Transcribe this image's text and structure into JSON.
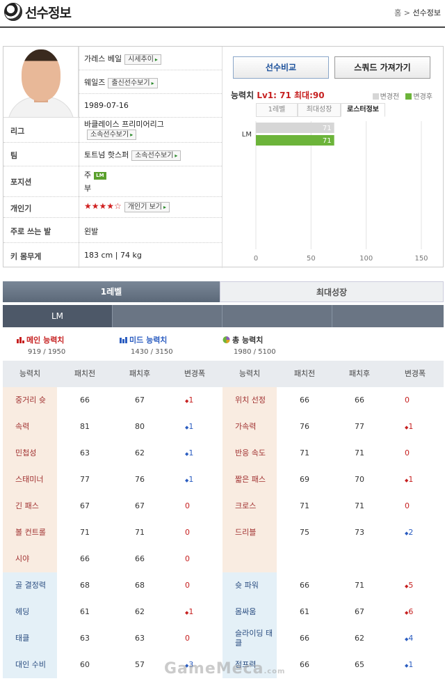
{
  "header": {
    "title": "선수정보",
    "breadcrumb_home": "홈",
    "breadcrumb_sep": ">",
    "breadcrumb_current": "선수정보"
  },
  "profile": {
    "name": "가레스 베일",
    "name_button": "시세추이",
    "nation": "웨일즈",
    "nation_button": "출신선수보기",
    "birth": "1989-07-16",
    "league_label": "리그",
    "league": "바클레이스 프리미어리그",
    "league_button": "소속선수보기",
    "team_label": "팀",
    "team": "토트넘 핫스퍼",
    "team_button": "소속선수보기",
    "position_label": "포지션",
    "position_main_prefix": "주",
    "position_main": "LM",
    "position_sub_prefix": "부",
    "popularity_label": "개인기",
    "popularity_stars": "★★★★☆",
    "popularity_button": "개인기 보기",
    "foot_label": "주로 쓰는 발",
    "foot": "왼발",
    "size_label": "키 몸무게",
    "size": "183 cm | 74 kg"
  },
  "panel": {
    "compare_button": "선수비교",
    "squad_button": "스쿼드 가져가기",
    "stat_title_prefix": "능력치",
    "stat_title_value": "Lv1: 71 최대:90",
    "legend_before": "변경전",
    "legend_after": "변경후",
    "tabs": [
      "1레벨",
      "최대성장",
      "로스터정보"
    ],
    "colors": {
      "before": "#d6d6d6",
      "after": "#6cb43a"
    }
  },
  "chart_data": {
    "type": "bar",
    "orientation": "horizontal",
    "categories": [
      "LM"
    ],
    "series": [
      {
        "name": "변경전",
        "values": [
          71
        ]
      },
      {
        "name": "변경후",
        "values": [
          71
        ]
      }
    ],
    "xlim": [
      0,
      150
    ],
    "xticks": [
      0,
      50,
      100,
      150
    ],
    "grid": true,
    "legend": "top-right"
  },
  "main_tabs": [
    "1레벨",
    "최대성장"
  ],
  "position_tabs": [
    "LM",
    "",
    "",
    ""
  ],
  "summary": {
    "main_label": "메인 능력치",
    "main_value": "919 / 1950",
    "mid_label": "미드 능력치",
    "mid_value": "1430 / 3150",
    "total_label": "총 능력치",
    "total_value": "1980 / 5100"
  },
  "table": {
    "headers": [
      "능력치",
      "패치전",
      "패치후",
      "변경폭",
      "능력치",
      "패치전",
      "패치후",
      "변경폭"
    ],
    "rows": [
      {
        "l": {
          "name": "중거리 슛",
          "before": "66",
          "after": "67",
          "delta": "1",
          "dir": "up",
          "cat": "main"
        },
        "r": {
          "name": "위치 선정",
          "before": "66",
          "after": "66",
          "delta": "0",
          "dir": "zero",
          "cat": "main"
        }
      },
      {
        "l": {
          "name": "속력",
          "before": "81",
          "after": "80",
          "delta": "1",
          "dir": "down",
          "cat": "main"
        },
        "r": {
          "name": "가속력",
          "before": "76",
          "after": "77",
          "delta": "1",
          "dir": "up",
          "cat": "main"
        }
      },
      {
        "l": {
          "name": "민첩성",
          "before": "63",
          "after": "62",
          "delta": "1",
          "dir": "down",
          "cat": "main"
        },
        "r": {
          "name": "반응 속도",
          "before": "71",
          "after": "71",
          "delta": "0",
          "dir": "zero",
          "cat": "main"
        }
      },
      {
        "l": {
          "name": "스태미너",
          "before": "77",
          "after": "76",
          "delta": "1",
          "dir": "down",
          "cat": "main"
        },
        "r": {
          "name": "짧은 패스",
          "before": "69",
          "after": "70",
          "delta": "1",
          "dir": "up",
          "cat": "main"
        }
      },
      {
        "l": {
          "name": "긴 패스",
          "before": "67",
          "after": "67",
          "delta": "0",
          "dir": "zero",
          "cat": "main"
        },
        "r": {
          "name": "크로스",
          "before": "71",
          "after": "71",
          "delta": "0",
          "dir": "zero",
          "cat": "main"
        }
      },
      {
        "l": {
          "name": "볼 컨트롤",
          "before": "71",
          "after": "71",
          "delta": "0",
          "dir": "zero",
          "cat": "main"
        },
        "r": {
          "name": "드리블",
          "before": "75",
          "after": "73",
          "delta": "2",
          "dir": "down",
          "cat": "main"
        }
      },
      {
        "l": {
          "name": "시야",
          "before": "66",
          "after": "66",
          "delta": "0",
          "dir": "zero",
          "cat": "main"
        },
        "r": {
          "name": "",
          "before": "",
          "after": "",
          "delta": "",
          "dir": "",
          "cat": "main"
        }
      },
      {
        "l": {
          "name": "골 결정력",
          "before": "68",
          "after": "68",
          "delta": "0",
          "dir": "zero",
          "cat": "mid"
        },
        "r": {
          "name": "슛 파워",
          "before": "66",
          "after": "71",
          "delta": "5",
          "dir": "up",
          "cat": "mid"
        }
      },
      {
        "l": {
          "name": "헤딩",
          "before": "61",
          "after": "62",
          "delta": "1",
          "dir": "up",
          "cat": "mid"
        },
        "r": {
          "name": "몸싸움",
          "before": "61",
          "after": "67",
          "delta": "6",
          "dir": "up",
          "cat": "mid"
        }
      },
      {
        "l": {
          "name": "태클",
          "before": "63",
          "after": "63",
          "delta": "0",
          "dir": "zero",
          "cat": "mid"
        },
        "r": {
          "name": "슬라이딩 태클",
          "before": "66",
          "after": "62",
          "delta": "4",
          "dir": "down",
          "cat": "mid"
        }
      },
      {
        "l": {
          "name": "대인 수비",
          "before": "60",
          "after": "57",
          "delta": "3",
          "dir": "down",
          "cat": "mid"
        },
        "r": {
          "name": "점프력",
          "before": "66",
          "after": "65",
          "delta": "1",
          "dir": "down",
          "cat": "mid"
        }
      }
    ]
  },
  "watermark": {
    "text": "GameMeca",
    "suffix": ".com"
  }
}
